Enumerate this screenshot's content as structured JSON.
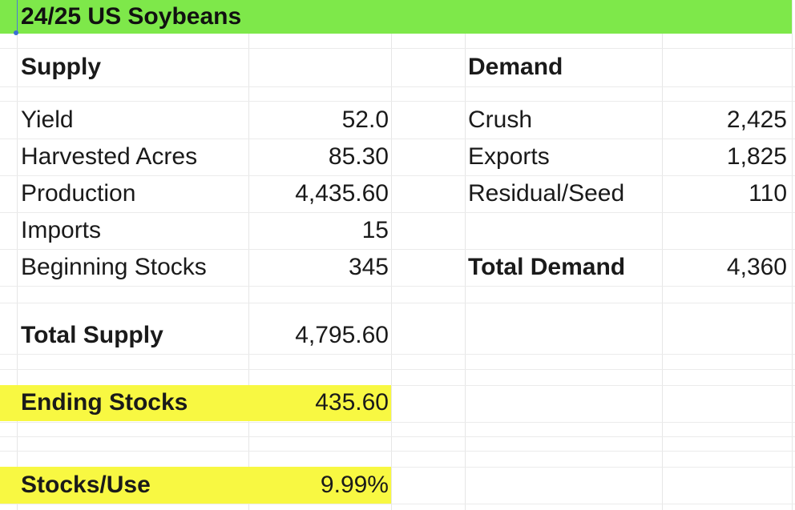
{
  "sheet": {
    "title": "24/25 US Soybeans",
    "title_bg": "#7ee84a",
    "highlight_bg": "#f8f842"
  },
  "supply": {
    "header": "Supply",
    "rows": [
      {
        "label": "Yield",
        "value": "52.0"
      },
      {
        "label": "Harvested Acres",
        "value": "85.30"
      },
      {
        "label": "Production",
        "value": "4,435.60"
      },
      {
        "label": "Imports",
        "value": "15"
      },
      {
        "label": "Beginning Stocks",
        "value": "345"
      }
    ],
    "total_label": "Total Supply",
    "total_value": "4,795.60"
  },
  "demand": {
    "header": "Demand",
    "rows": [
      {
        "label": "Crush",
        "value": "2,425"
      },
      {
        "label": "Exports",
        "value": "1,825"
      },
      {
        "label": "Residual/Seed",
        "value": "110"
      }
    ],
    "total_label": "Total Demand",
    "total_value": "4,360"
  },
  "ending_stocks": {
    "label": "Ending Stocks",
    "value": "435.60"
  },
  "stocks_use": {
    "label": "Stocks/Use",
    "value": "9.99%"
  }
}
